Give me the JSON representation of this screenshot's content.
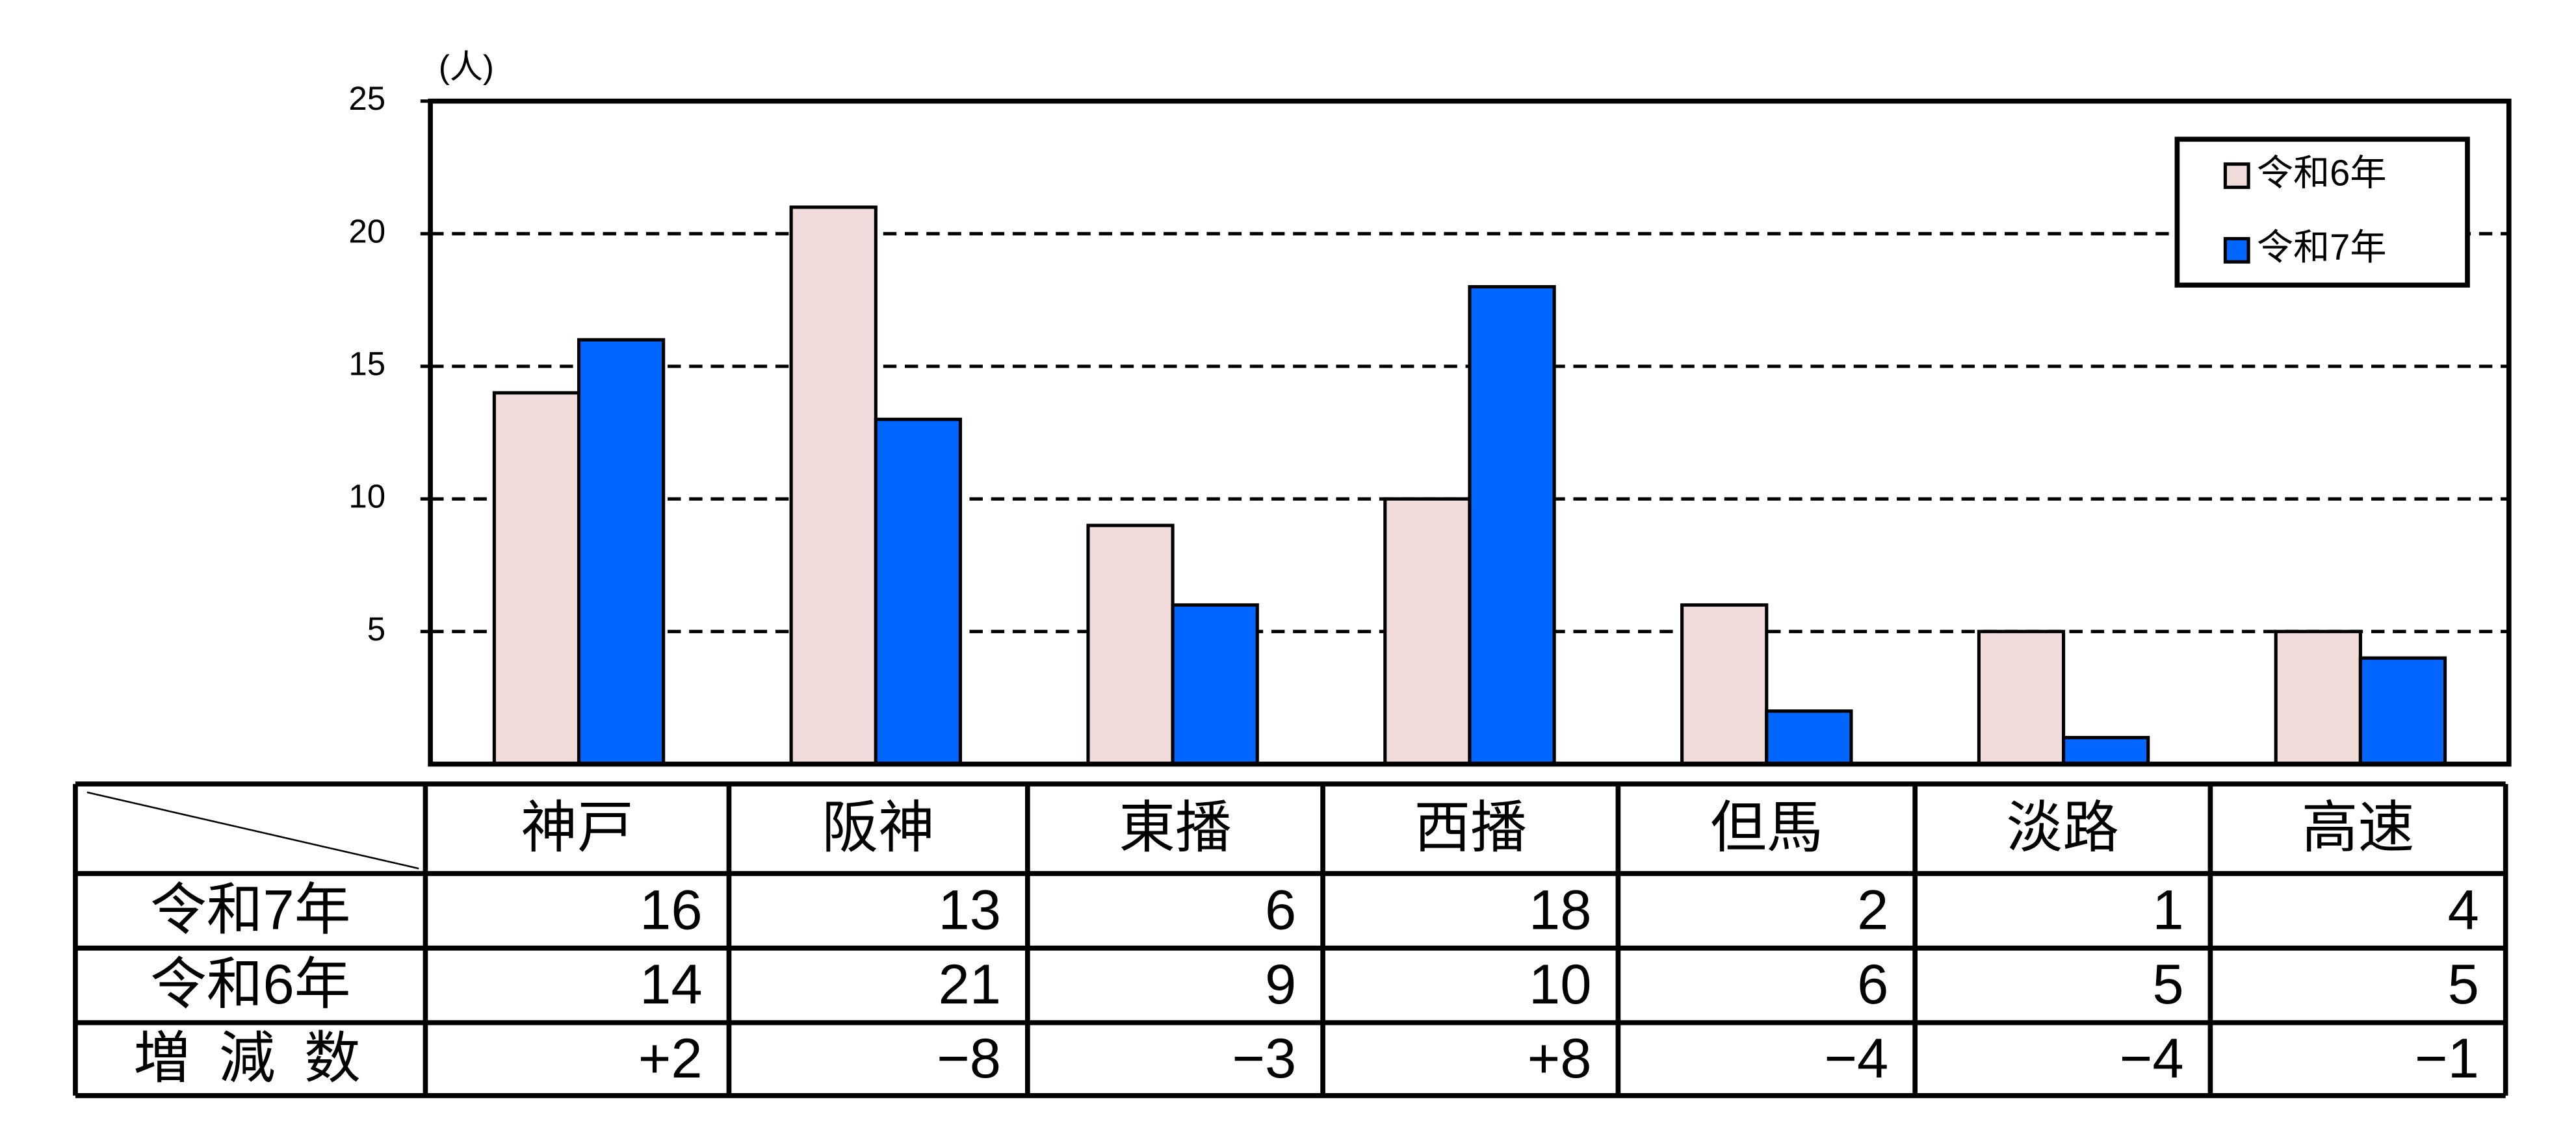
{
  "chart_data": {
    "type": "bar",
    "y_unit": "(人)",
    "categories": [
      "神戸",
      "阪神",
      "東播",
      "西播",
      "但馬",
      "淡路",
      "高速"
    ],
    "series": [
      {
        "name": "令和6年",
        "color": "#f2dcdb",
        "values": [
          14,
          21,
          9,
          10,
          6,
          5,
          5
        ]
      },
      {
        "name": "令和7年",
        "color": "#0066ff",
        "values": [
          16,
          13,
          6,
          18,
          2,
          1,
          4
        ]
      }
    ],
    "ylim": [
      0,
      25
    ],
    "yticks": [
      5,
      10,
      15,
      20,
      25
    ],
    "grid": true,
    "legend": "upper right",
    "change": {
      "label": "増 減 数",
      "values": [
        2,
        -8,
        -3,
        8,
        -4,
        -4,
        -1
      ],
      "value_labels": [
        "+2",
        "−8",
        "−3",
        "+8",
        "−4",
        "−4",
        "−1"
      ]
    }
  }
}
